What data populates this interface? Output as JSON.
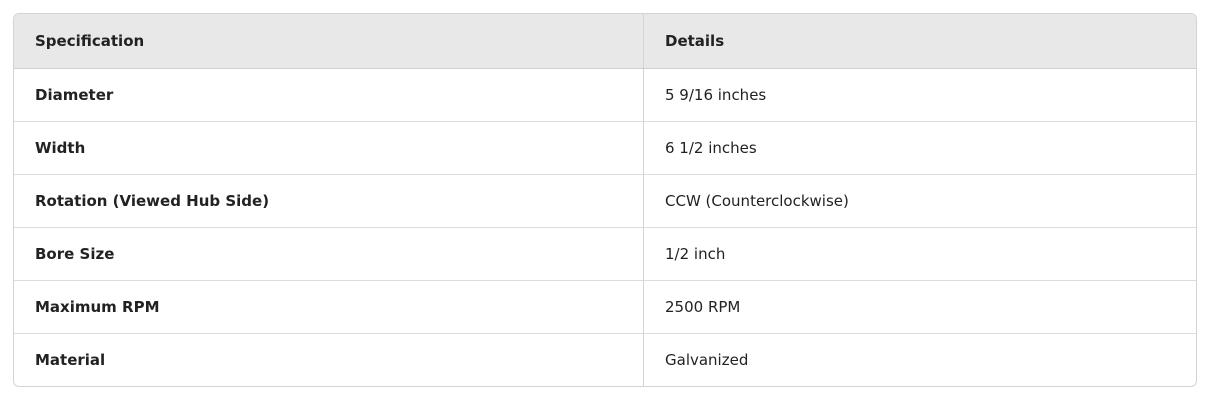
{
  "table": {
    "headers": [
      "Specification",
      "Details"
    ],
    "rows": [
      [
        "Diameter",
        "5 9/16 inches"
      ],
      [
        "Width",
        "6 1/2 inches"
      ],
      [
        "Rotation (Viewed Hub Side)",
        "CCW (Counterclockwise)"
      ],
      [
        "Bore Size",
        "1/2 inch"
      ],
      [
        "Maximum RPM",
        "2500 RPM"
      ],
      [
        "Material",
        "Galvanized"
      ]
    ]
  }
}
